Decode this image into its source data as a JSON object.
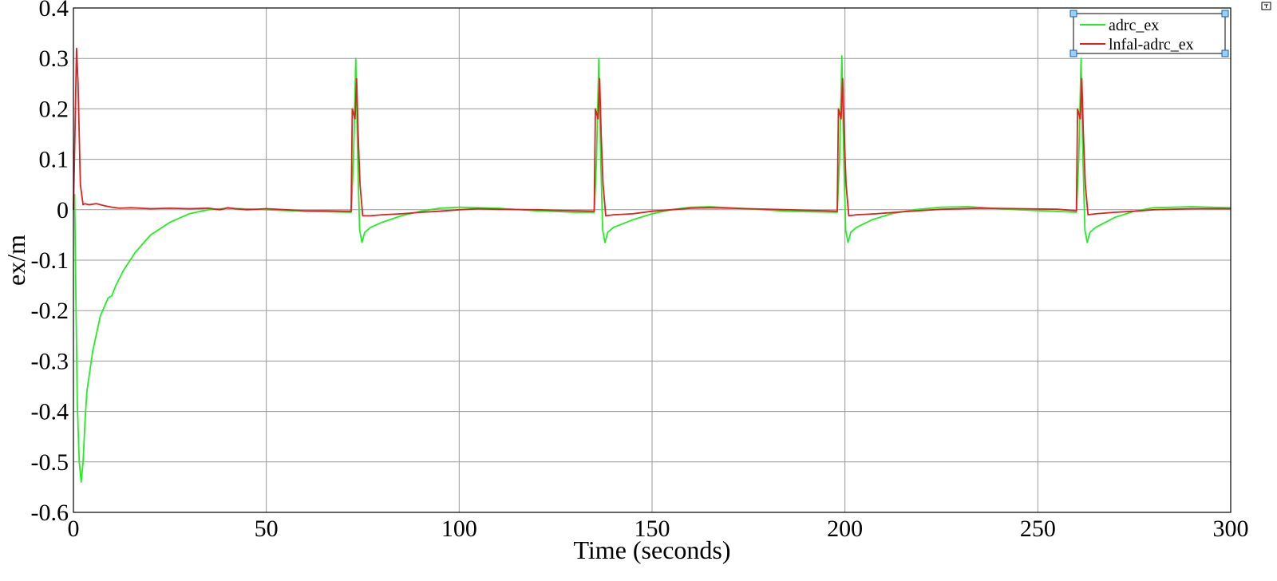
{
  "chart_data": {
    "type": "line",
    "xlabel": "Time (seconds)",
    "ylabel": "ex/m",
    "xlim": [
      0,
      300
    ],
    "ylim": [
      -0.6,
      0.4
    ],
    "xticks": [
      0,
      50,
      100,
      150,
      200,
      250,
      300
    ],
    "yticks": [
      0.4,
      0.3,
      0.2,
      0.1,
      0,
      -0.1,
      -0.2,
      -0.3,
      -0.4,
      -0.5,
      -0.6
    ],
    "xtick_labels": [
      "0",
      "50",
      "100",
      "150",
      "200",
      "250",
      "300"
    ],
    "ytick_labels": [
      "0.4",
      "0.3",
      "0.2",
      "0.1",
      "0",
      "-0.1",
      "-0.2",
      "-0.3",
      "-0.4",
      "-0.5",
      "-0.6"
    ],
    "grid": true,
    "legend_position": "top-right",
    "series": [
      {
        "name": "adrc_ex",
        "color": "#22ee22",
        "x": [
          0,
          0.3,
          0.6,
          1.0,
          1.5,
          2.0,
          2.5,
          3.0,
          3.5,
          5,
          7,
          9,
          10,
          11,
          13,
          16,
          20,
          25,
          30,
          35,
          40,
          50,
          60,
          72,
          72.6,
          73.2,
          73.7,
          74.2,
          74.8,
          75.5,
          77,
          80,
          85,
          90,
          95,
          100,
          110,
          120,
          130,
          135,
          135.6,
          136.2,
          136.7,
          137.2,
          137.8,
          138.5,
          140,
          145,
          150,
          155,
          160,
          165,
          175,
          185,
          198,
          198.6,
          199.2,
          199.7,
          200.2,
          200.8,
          201.5,
          203,
          207,
          212,
          218,
          225,
          232,
          245,
          260,
          260.6,
          261.2,
          261.7,
          262.2,
          262.8,
          263.5,
          265,
          270,
          275,
          280,
          290,
          300
        ],
        "y": [
          0,
          0.03,
          -0.15,
          -0.38,
          -0.5,
          -0.54,
          -0.5,
          -0.42,
          -0.36,
          -0.28,
          -0.21,
          -0.175,
          -0.17,
          -0.15,
          -0.12,
          -0.085,
          -0.05,
          -0.025,
          -0.008,
          0.0,
          0.003,
          0.0,
          -0.003,
          -0.005,
          0.1,
          0.3,
          0.1,
          -0.04,
          -0.065,
          -0.045,
          -0.035,
          -0.025,
          -0.012,
          -0.003,
          0.003,
          0.005,
          0.003,
          -0.002,
          -0.005,
          -0.005,
          0.1,
          0.3,
          0.1,
          -0.04,
          -0.065,
          -0.045,
          -0.035,
          -0.02,
          -0.008,
          0.0,
          0.005,
          0.006,
          0.002,
          -0.003,
          -0.005,
          0.1,
          0.305,
          0.1,
          -0.04,
          -0.065,
          -0.045,
          -0.035,
          -0.02,
          -0.008,
          0.0,
          0.005,
          0.006,
          0.0,
          -0.005,
          0.1,
          0.3,
          0.1,
          -0.04,
          -0.065,
          -0.045,
          -0.035,
          -0.015,
          -0.003,
          0.004,
          0.006,
          0.004
        ]
      },
      {
        "name": "lnfal-adrc_ex",
        "color": "#dd2222",
        "x": [
          0,
          0.4,
          0.8,
          1.2,
          1.8,
          2.5,
          3,
          4,
          6,
          8,
          10,
          12,
          15,
          20,
          25,
          30,
          35,
          38,
          40,
          42,
          45,
          50,
          55,
          60,
          65,
          70,
          72,
          72.3,
          73,
          73.4,
          73.8,
          74.3,
          75,
          77,
          80,
          85,
          90,
          95,
          100,
          105,
          110,
          120,
          130,
          135,
          135.3,
          136,
          136.4,
          136.8,
          137.3,
          138,
          140,
          145,
          150,
          155,
          160,
          165,
          170,
          175,
          185,
          195,
          198,
          198.3,
          199,
          199.4,
          199.8,
          200.3,
          201,
          203,
          208,
          215,
          225,
          235,
          245,
          255,
          260,
          260.3,
          261,
          261.4,
          261.8,
          262.3,
          263,
          265,
          270,
          275,
          280,
          290,
          300
        ],
        "y": [
          0,
          0.15,
          0.32,
          0.25,
          0.05,
          0.01,
          0.012,
          0.01,
          0.012,
          0.008,
          0.005,
          0.003,
          0.004,
          0.002,
          0.003,
          0.002,
          0.003,
          0.0,
          0.004,
          0.002,
          0.0,
          0.002,
          0.0,
          -0.002,
          -0.002,
          -0.003,
          -0.003,
          0.2,
          0.18,
          0.26,
          0.15,
          0.05,
          -0.012,
          -0.012,
          -0.01,
          -0.008,
          -0.005,
          -0.003,
          0.0,
          0.002,
          0.001,
          0.0,
          -0.002,
          -0.003,
          0.2,
          0.18,
          0.26,
          0.15,
          0.05,
          -0.012,
          -0.01,
          -0.008,
          -0.003,
          0.0,
          0.003,
          0.004,
          0.003,
          0.002,
          0.0,
          -0.002,
          -0.003,
          0.2,
          0.18,
          0.26,
          0.15,
          0.05,
          -0.012,
          -0.01,
          -0.008,
          -0.004,
          0.001,
          0.003,
          0.002,
          0.001,
          -0.002,
          0.2,
          0.18,
          0.26,
          0.15,
          0.05,
          -0.01,
          -0.008,
          -0.005,
          -0.003,
          0.0,
          0.002,
          0.002
        ]
      }
    ]
  }
}
